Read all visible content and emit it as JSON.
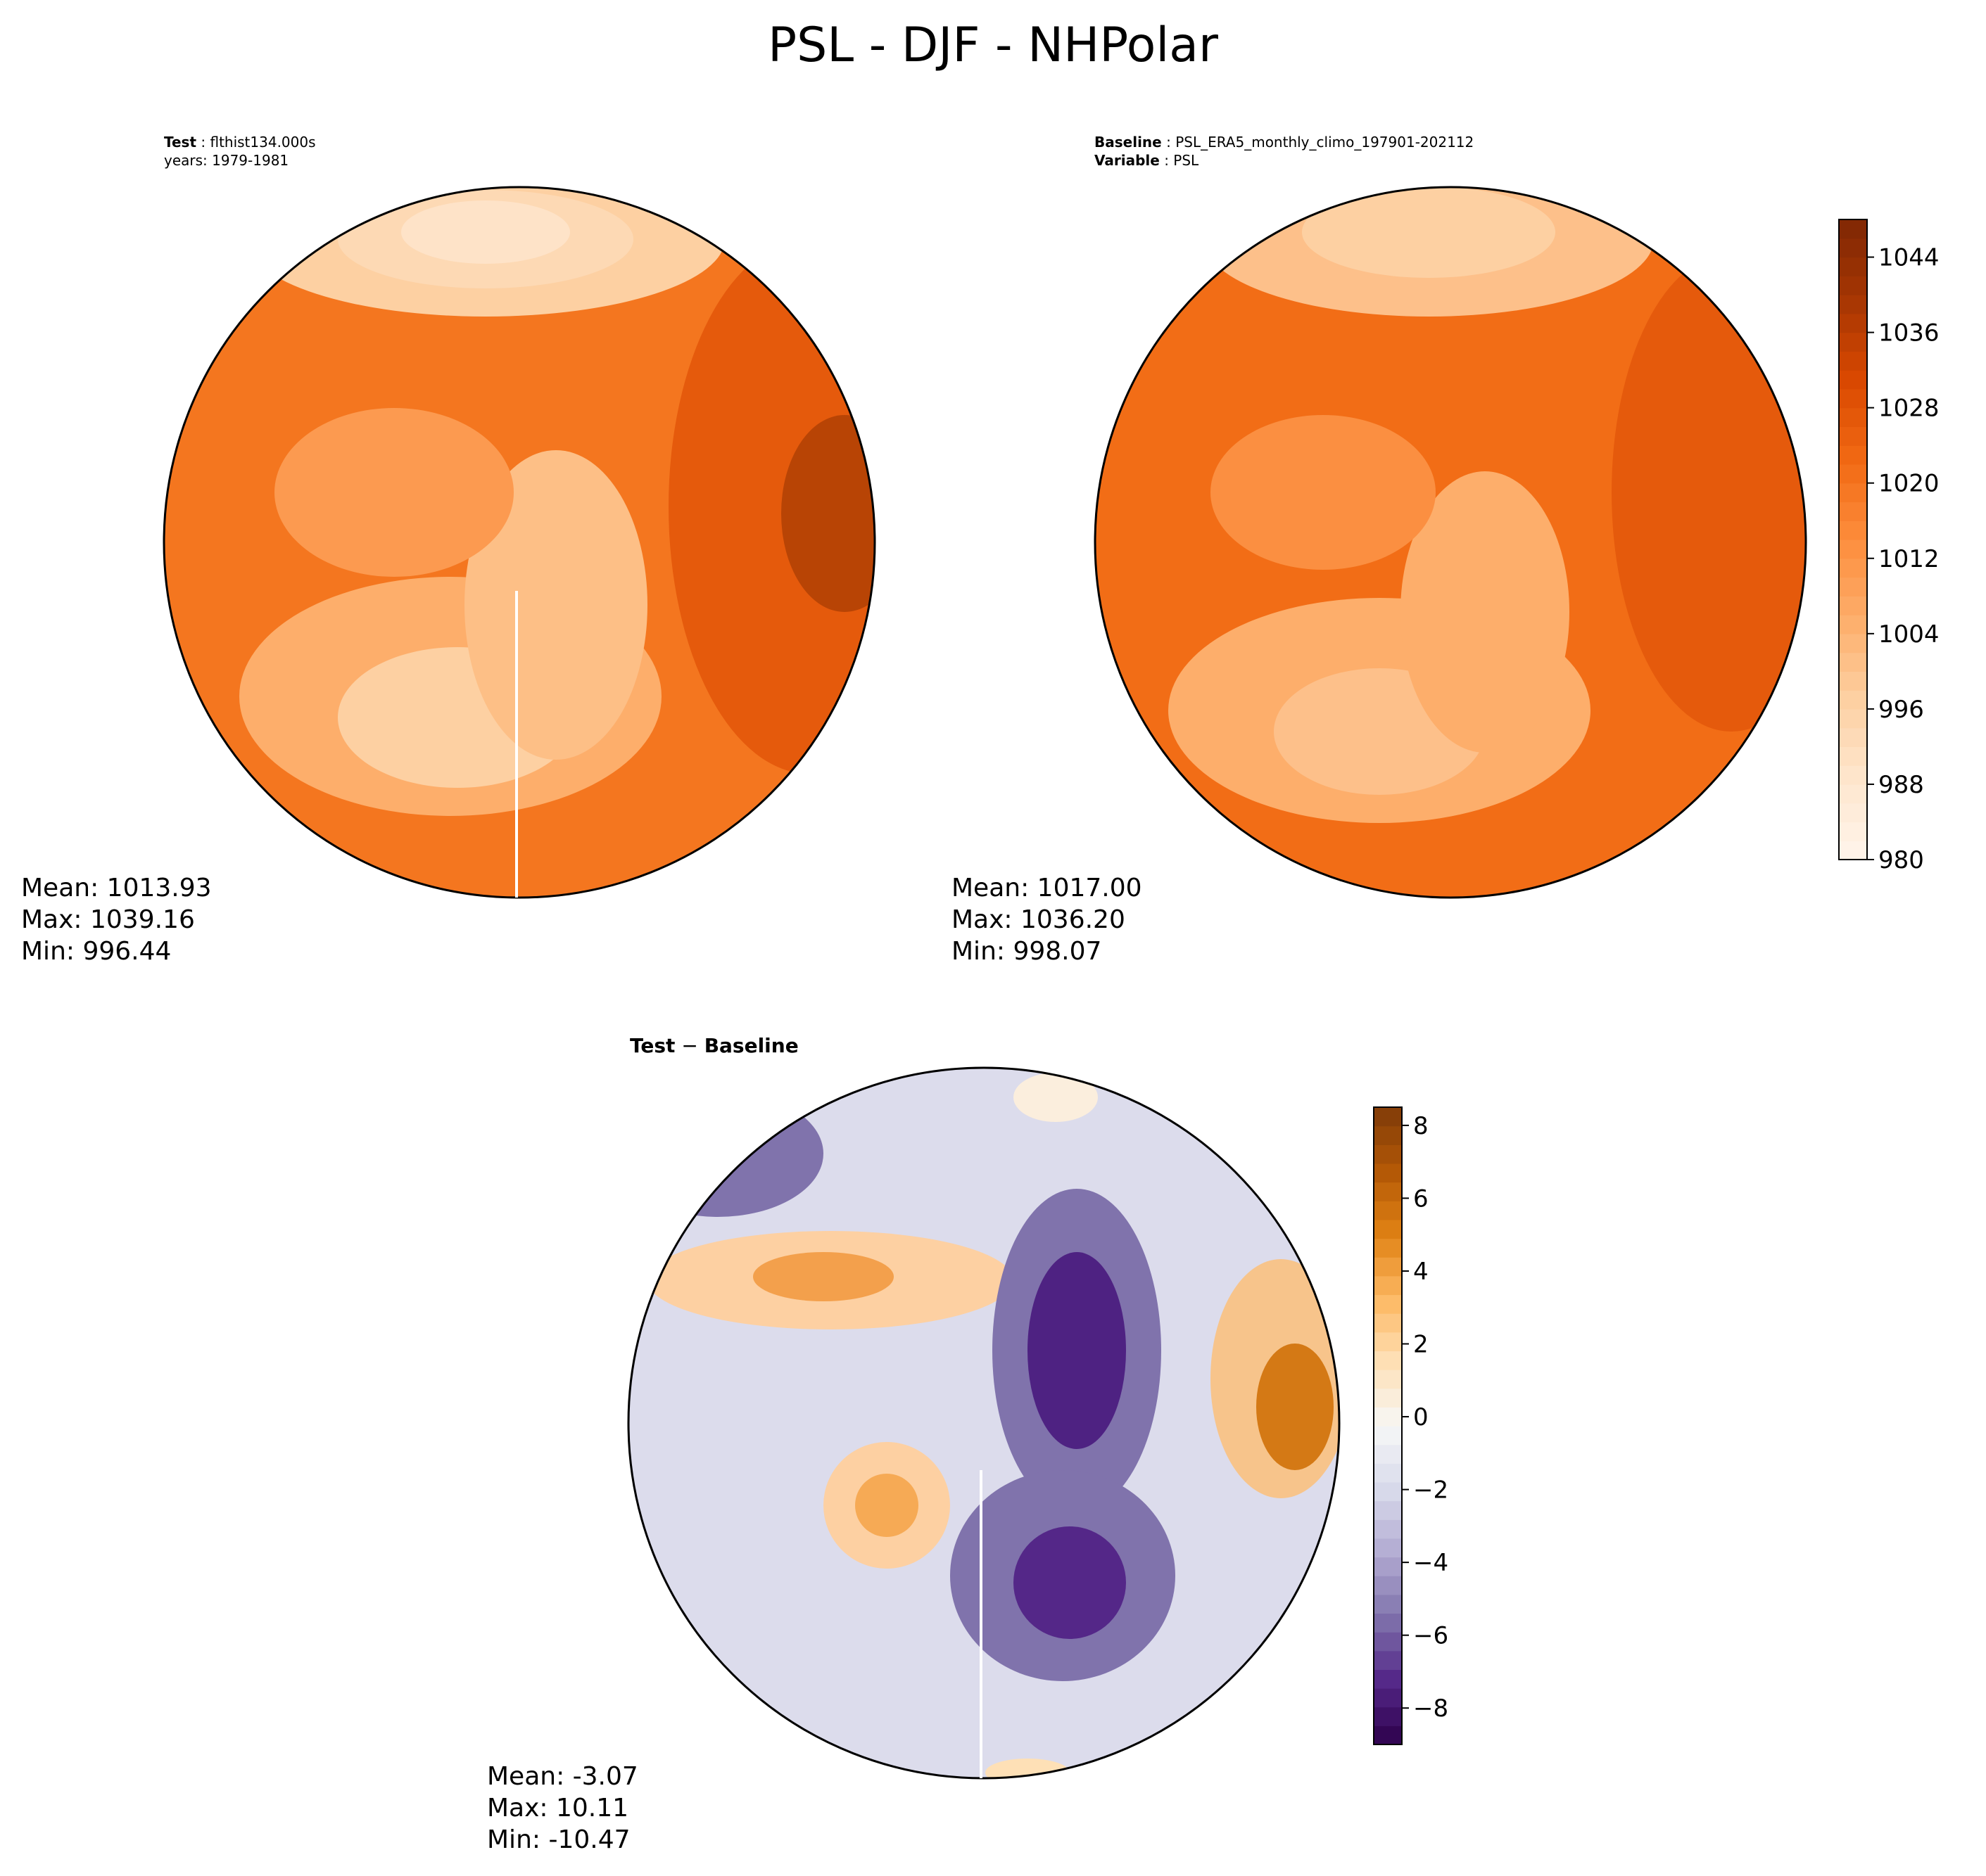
{
  "figure": {
    "title": "PSL - DJF - NHPolar"
  },
  "panels": {
    "test": {
      "label_key": "Test",
      "label_value": "flthist134.000s",
      "years": "years: 1979-1981",
      "stats": {
        "mean": "Mean: 1013.93",
        "max": "Max: 1039.16",
        "min": "Min: 996.44"
      }
    },
    "baseline": {
      "label_key": "Baseline",
      "label_value": "PSL_ERA5_monthly_climo_197901-202112",
      "variable_key": "Variable",
      "variable_value": "PSL",
      "stats": {
        "mean": "Mean: 1017.00",
        "max": "Max: 1036.20",
        "min": "Min: 998.07"
      }
    },
    "difference": {
      "title_left": "Test",
      "title_op": " − ",
      "title_right": "Baseline",
      "stats": {
        "mean": "Mean: -3.07",
        "max": "Max: 10.11",
        "min": "Min: -10.47"
      }
    }
  },
  "colorbars": {
    "psl": {
      "ticks": [
        "980",
        "988",
        "996",
        "1004",
        "1012",
        "1020",
        "1028",
        "1036",
        "1044"
      ],
      "range": [
        980,
        1048
      ],
      "colormap": "Oranges",
      "colors": [
        "#fff5eb",
        "#fee6ce",
        "#fdd0a2",
        "#fdae6b",
        "#fd8d3c",
        "#f16913",
        "#d94801",
        "#a63603",
        "#7f2704"
      ]
    },
    "diff": {
      "ticks": [
        "−8",
        "−6",
        "−4",
        "−2",
        "0",
        "2",
        "4",
        "6",
        "8"
      ],
      "range": [
        -9,
        8.5
      ],
      "colormap": "PuOr_r",
      "colors": [
        "#2d004b",
        "#542788",
        "#8073ac",
        "#b2abd2",
        "#d8daeb",
        "#f7f7f7",
        "#fee0b6",
        "#fdb863",
        "#e08214",
        "#b35806",
        "#7f3b08"
      ]
    }
  }
}
